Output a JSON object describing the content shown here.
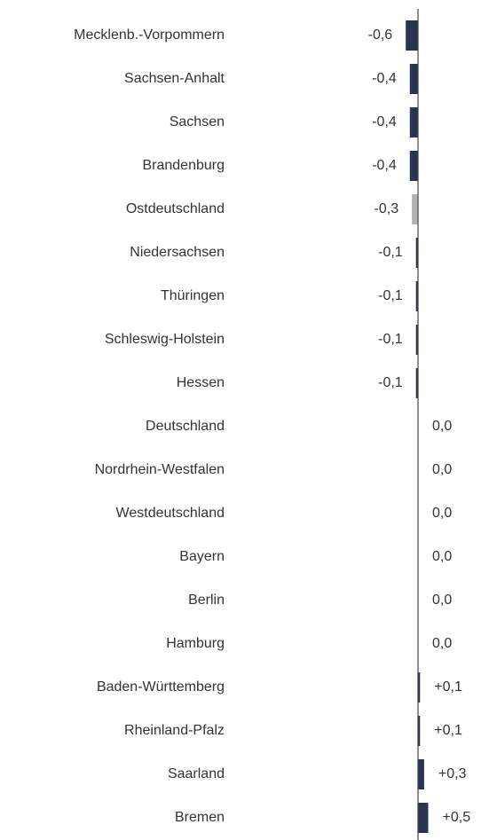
{
  "chart_data": {
    "type": "bar",
    "orientation": "horizontal",
    "categories": [
      "Mecklenb.-Vorpommern",
      "Sachsen-Anhalt",
      "Sachsen",
      "Brandenburg",
      "Ostdeutschland",
      "Niedersachsen",
      "Thüringen",
      "Schleswig-Holstein",
      "Hessen",
      "Deutschland",
      "Nordrhein-Westfalen",
      "Westdeutschland",
      "Bayern",
      "Berlin",
      "Hamburg",
      "Baden-Württemberg",
      "Rheinland-Pfalz",
      "Saarland",
      "Bremen"
    ],
    "values": [
      -0.6,
      -0.4,
      -0.4,
      -0.4,
      -0.3,
      -0.1,
      -0.1,
      -0.1,
      -0.1,
      0.0,
      0.0,
      0.0,
      0.0,
      0.0,
      0.0,
      0.1,
      0.1,
      0.3,
      0.5
    ],
    "value_labels": [
      "-0,6",
      "-0,4",
      "-0,4",
      "-0,4",
      "-0,3",
      "-0,1",
      "-0,1",
      "-0,1",
      "-0,1",
      "0,0",
      "0,0",
      "0,0",
      "0,0",
      "0,0",
      "0,0",
      "+0,1",
      "+0,1",
      "+0,3",
      "+0,5"
    ],
    "colors": [
      "#2a3350",
      "#2a3350",
      "#2a3350",
      "#2a3350",
      "#b3b3b3",
      "#2a3350",
      "#2a3350",
      "#2a3350",
      "#2a3350",
      "#b3b3b3",
      "#2a3350",
      "#b3b3b3",
      "#2a3350",
      "#2a3350",
      "#2a3350",
      "#2a3350",
      "#2a3350",
      "#2a3350",
      "#2a3350"
    ]
  }
}
